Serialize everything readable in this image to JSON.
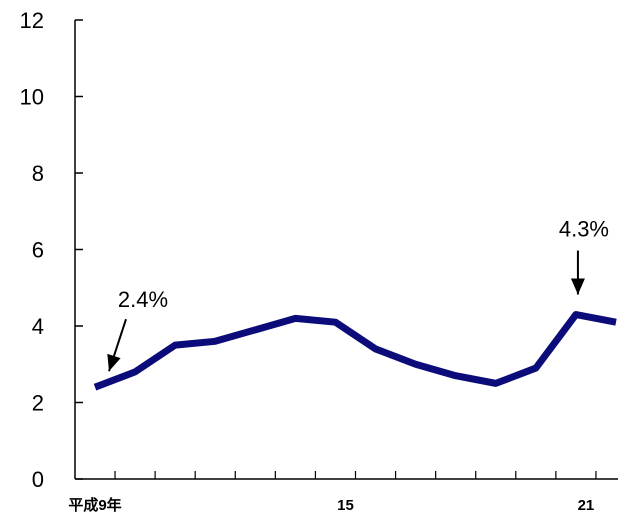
{
  "chart_data": {
    "type": "line",
    "title": "",
    "xlabel": "",
    "ylabel": "",
    "x": [
      9,
      10,
      11,
      12,
      13,
      14,
      15,
      16,
      17,
      18,
      19,
      20,
      21,
      22
    ],
    "series": [
      {
        "values": [
          2.4,
          2.8,
          3.5,
          3.6,
          3.9,
          4.2,
          4.1,
          3.4,
          3.0,
          2.7,
          2.5,
          2.9,
          4.3,
          4.1
        ]
      }
    ],
    "ylim": [
      0,
      12
    ],
    "y_ticks": [
      "0",
      "2",
      "4",
      "6",
      "8",
      "10",
      "12"
    ],
    "x_tick_labels": [
      {
        "x": 9,
        "label": "平成9年"
      },
      {
        "x": 15,
        "label": "15"
      },
      {
        "x": 21,
        "label": "21"
      }
    ],
    "grid": false,
    "line_color": "#0b0b7a",
    "annotations": [
      {
        "text": "2.4%",
        "x": 9,
        "y": 2.4
      },
      {
        "text": "4.3%",
        "x": 21,
        "y": 4.3
      }
    ]
  }
}
